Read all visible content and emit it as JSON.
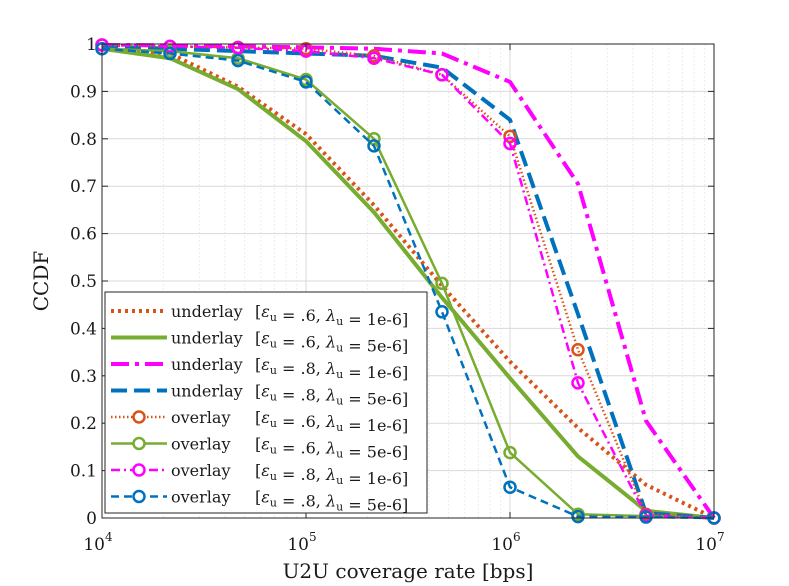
{
  "chart_data": {
    "type": "line",
    "xscale": "log",
    "xlabel": "U2U coverage rate [bps]",
    "ylabel": "CCDF",
    "xlim": [
      10000,
      10000000
    ],
    "ylim": [
      0,
      1
    ],
    "grid": true,
    "legend_position": "bottom-left",
    "x_ticks": [
      {
        "value": 10000,
        "base": "10",
        "exp": "4"
      },
      {
        "value": 100000,
        "base": "10",
        "exp": "5"
      },
      {
        "value": 1000000,
        "base": "10",
        "exp": "6"
      },
      {
        "value": 10000000,
        "base": "10",
        "exp": "7"
      }
    ],
    "y_ticks": [
      {
        "value": 0,
        "label": "0"
      },
      {
        "value": 0.1,
        "label": "0.1"
      },
      {
        "value": 0.2,
        "label": "0.2"
      },
      {
        "value": 0.3,
        "label": "0.3"
      },
      {
        "value": 0.4,
        "label": "0.4"
      },
      {
        "value": 0.5,
        "label": "0.5"
      },
      {
        "value": 0.6,
        "label": "0.6"
      },
      {
        "value": 0.7,
        "label": "0.7"
      },
      {
        "value": 0.8,
        "label": "0.8"
      },
      {
        "value": 0.9,
        "label": "0.9"
      },
      {
        "value": 1,
        "label": "1"
      }
    ],
    "series": [
      {
        "name": "underlay [ε_u = .6, λ_u = 1e-6]",
        "kind": "underlay",
        "eps": ".6",
        "lam": "1e-6",
        "color": "#D95319",
        "style": "dotted",
        "thick": true,
        "marker": false,
        "x": [
          10000,
          21544,
          46416,
          100000,
          215443,
          464159,
          1000000,
          2154435,
          4641589,
          10000000
        ],
        "y": [
          0.99,
          0.98,
          0.91,
          0.81,
          0.66,
          0.49,
          0.33,
          0.19,
          0.07,
          0.0
        ]
      },
      {
        "name": "underlay [ε_u = .6, λ_u = 5e-6]",
        "kind": "underlay",
        "eps": ".6",
        "lam": "5e-6",
        "color": "#77AC30",
        "style": "solid",
        "thick": true,
        "marker": false,
        "x": [
          10000,
          21544,
          46416,
          100000,
          215443,
          464159,
          1000000,
          2154435,
          4641589,
          10000000
        ],
        "y": [
          0.99,
          0.97,
          0.905,
          0.795,
          0.645,
          0.465,
          0.295,
          0.13,
          0.015,
          0.0
        ]
      },
      {
        "name": "underlay [ε_u = .8, λ_u = 1e-6]",
        "kind": "underlay",
        "eps": ".8",
        "lam": "1e-6",
        "color": "#FF00FF",
        "style": "dashdot",
        "thick": true,
        "marker": false,
        "x": [
          10000,
          21544,
          46416,
          100000,
          215443,
          464159,
          1000000,
          2154435,
          4641589,
          10000000
        ],
        "y": [
          0.998,
          0.997,
          0.995,
          0.993,
          0.99,
          0.98,
          0.92,
          0.705,
          0.205,
          0.0
        ]
      },
      {
        "name": "underlay [ε_u = .8, λ_u = 5e-6]",
        "kind": "underlay",
        "eps": ".8",
        "lam": "5e-6",
        "color": "#0072BD",
        "style": "dashed",
        "thick": true,
        "marker": false,
        "x": [
          10000,
          21544,
          46416,
          100000,
          215443,
          464159,
          1000000,
          2154435,
          4641589,
          10000000
        ],
        "y": [
          0.995,
          0.99,
          0.985,
          0.98,
          0.975,
          0.95,
          0.84,
          0.43,
          0.01,
          0.0
        ]
      },
      {
        "name": "overlay [ε_u = .6, λ_u = 1e-6]",
        "kind": "overlay",
        "eps": ".6",
        "lam": "1e-6",
        "color": "#D95319",
        "style": "dotted",
        "thick": false,
        "marker": true,
        "x": [
          10000,
          21544,
          46416,
          100000,
          215443,
          464159,
          1000000,
          2154435,
          4641589,
          10000000
        ],
        "y": [
          0.998,
          0.995,
          0.993,
          0.99,
          0.975,
          0.935,
          0.805,
          0.355,
          0.008,
          0.0
        ]
      },
      {
        "name": "overlay [ε_u = .6, λ_u = 5e-6]",
        "kind": "overlay",
        "eps": ".6",
        "lam": "5e-6",
        "color": "#77AC30",
        "style": "solid",
        "thick": false,
        "marker": true,
        "x": [
          10000,
          21544,
          46416,
          100000,
          215443,
          464159,
          1000000,
          2154435,
          4641589,
          10000000
        ],
        "y": [
          0.99,
          0.985,
          0.97,
          0.925,
          0.8,
          0.495,
          0.138,
          0.008,
          0.004,
          0.0
        ]
      },
      {
        "name": "overlay [ε_u = .8, λ_u = 1e-6]",
        "kind": "overlay",
        "eps": ".8",
        "lam": "1e-6",
        "color": "#FF00FF",
        "style": "dashdot",
        "thick": false,
        "marker": true,
        "x": [
          10000,
          21544,
          46416,
          100000,
          215443,
          464159,
          1000000,
          2154435,
          4641589,
          10000000
        ],
        "y": [
          0.998,
          0.995,
          0.992,
          0.985,
          0.97,
          0.935,
          0.79,
          0.285,
          0.005,
          0.0
        ]
      },
      {
        "name": "overlay [ε_u = .8, λ_u = 5e-6]",
        "kind": "overlay",
        "eps": ".8",
        "lam": "5e-6",
        "color": "#0072BD",
        "style": "dashed",
        "thick": false,
        "marker": true,
        "x": [
          10000,
          21544,
          46416,
          100000,
          215443,
          464159,
          1000000,
          2154435,
          4641589,
          10000000
        ],
        "y": [
          0.99,
          0.98,
          0.965,
          0.92,
          0.785,
          0.435,
          0.065,
          0.003,
          0.002,
          0.0
        ]
      }
    ]
  }
}
